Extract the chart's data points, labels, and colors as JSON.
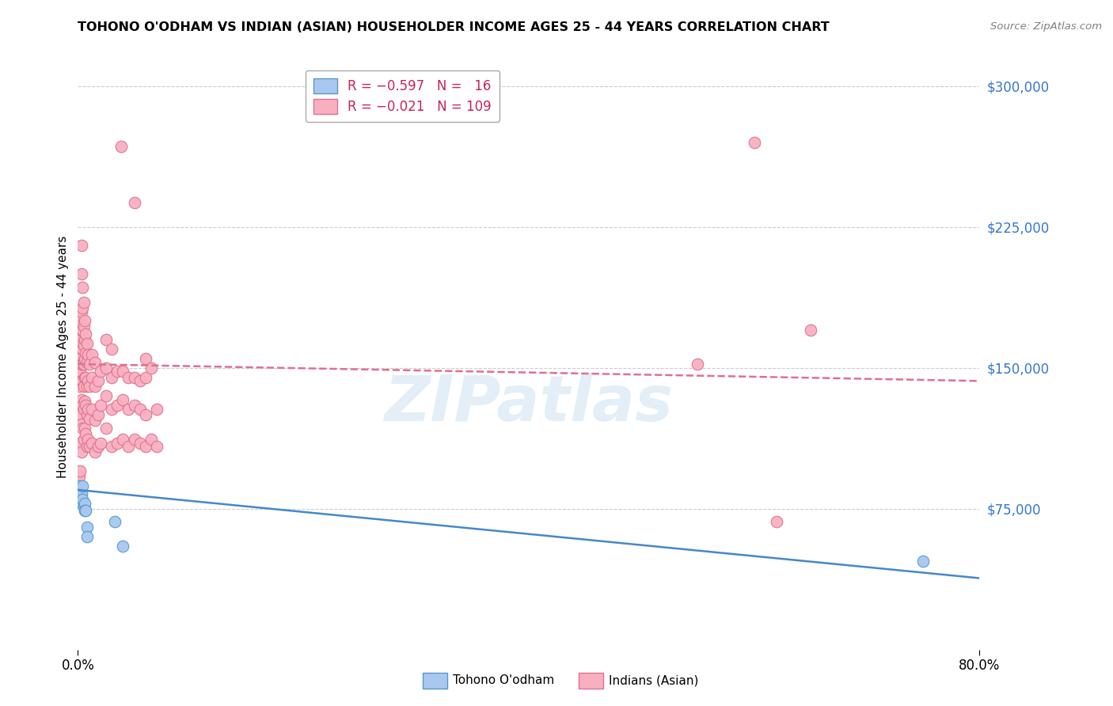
{
  "title": "TOHONO O'ODHAM VS INDIAN (ASIAN) HOUSEHOLDER INCOME AGES 25 - 44 YEARS CORRELATION CHART",
  "source_text": "Source: ZipAtlas.com",
  "ylabel": "Householder Income Ages 25 - 44 years",
  "xlim": [
    0.0,
    0.8
  ],
  "ylim": [
    0,
    312000
  ],
  "ytick_vals": [
    75000,
    150000,
    225000,
    300000
  ],
  "ytick_labels": [
    "$75,000",
    "$150,000",
    "$225,000",
    "$300,000"
  ],
  "grid_color": "#cccccc",
  "background_color": "#ffffff",
  "tohono_color": "#a8c8f0",
  "tohono_edge_color": "#5599cc",
  "indian_color": "#f8b0c0",
  "indian_edge_color": "#e07090",
  "tohono_line_color": "#4488cc",
  "indian_line_color": "#e07090",
  "watermark": "ZIPatlas",
  "tohono_points": [
    [
      0.001,
      87000
    ],
    [
      0.002,
      85000
    ],
    [
      0.002,
      80000
    ],
    [
      0.003,
      83000
    ],
    [
      0.003,
      78000
    ],
    [
      0.004,
      87000
    ],
    [
      0.004,
      80000
    ],
    [
      0.005,
      76000
    ],
    [
      0.006,
      78000
    ],
    [
      0.006,
      74000
    ],
    [
      0.007,
      74000
    ],
    [
      0.008,
      65000
    ],
    [
      0.008,
      60000
    ],
    [
      0.033,
      68000
    ],
    [
      0.04,
      55000
    ],
    [
      0.75,
      47000
    ]
  ],
  "indian_points": [
    [
      0.001,
      85000
    ],
    [
      0.001,
      92000
    ],
    [
      0.001,
      110000
    ],
    [
      0.001,
      125000
    ],
    [
      0.001,
      145000
    ],
    [
      0.001,
      155000
    ],
    [
      0.001,
      165000
    ],
    [
      0.001,
      175000
    ],
    [
      0.002,
      95000
    ],
    [
      0.002,
      110000
    ],
    [
      0.002,
      130000
    ],
    [
      0.002,
      140000
    ],
    [
      0.002,
      148000
    ],
    [
      0.002,
      155000
    ],
    [
      0.002,
      165000
    ],
    [
      0.002,
      172000
    ],
    [
      0.003,
      105000
    ],
    [
      0.003,
      120000
    ],
    [
      0.003,
      133000
    ],
    [
      0.003,
      143000
    ],
    [
      0.003,
      152000
    ],
    [
      0.003,
      162000
    ],
    [
      0.003,
      170000
    ],
    [
      0.003,
      180000
    ],
    [
      0.003,
      200000
    ],
    [
      0.003,
      215000
    ],
    [
      0.004,
      118000
    ],
    [
      0.004,
      130000
    ],
    [
      0.004,
      143000
    ],
    [
      0.004,
      152000
    ],
    [
      0.004,
      160000
    ],
    [
      0.004,
      170000
    ],
    [
      0.004,
      182000
    ],
    [
      0.004,
      193000
    ],
    [
      0.005,
      112000
    ],
    [
      0.005,
      128000
    ],
    [
      0.005,
      140000
    ],
    [
      0.005,
      152000
    ],
    [
      0.005,
      162000
    ],
    [
      0.005,
      172000
    ],
    [
      0.005,
      185000
    ],
    [
      0.006,
      118000
    ],
    [
      0.006,
      132000
    ],
    [
      0.006,
      145000
    ],
    [
      0.006,
      155000
    ],
    [
      0.006,
      165000
    ],
    [
      0.006,
      175000
    ],
    [
      0.007,
      115000
    ],
    [
      0.007,
      130000
    ],
    [
      0.007,
      145000
    ],
    [
      0.007,
      158000
    ],
    [
      0.007,
      168000
    ],
    [
      0.008,
      108000
    ],
    [
      0.008,
      125000
    ],
    [
      0.008,
      140000
    ],
    [
      0.008,
      153000
    ],
    [
      0.008,
      163000
    ],
    [
      0.009,
      112000
    ],
    [
      0.009,
      128000
    ],
    [
      0.009,
      143000
    ],
    [
      0.009,
      157000
    ],
    [
      0.01,
      108000
    ],
    [
      0.01,
      123000
    ],
    [
      0.01,
      140000
    ],
    [
      0.01,
      152000
    ],
    [
      0.012,
      110000
    ],
    [
      0.012,
      128000
    ],
    [
      0.012,
      145000
    ],
    [
      0.012,
      157000
    ],
    [
      0.015,
      105000
    ],
    [
      0.015,
      122000
    ],
    [
      0.015,
      140000
    ],
    [
      0.015,
      153000
    ],
    [
      0.018,
      108000
    ],
    [
      0.018,
      125000
    ],
    [
      0.018,
      143000
    ],
    [
      0.02,
      110000
    ],
    [
      0.02,
      130000
    ],
    [
      0.02,
      148000
    ],
    [
      0.025,
      118000
    ],
    [
      0.025,
      135000
    ],
    [
      0.025,
      150000
    ],
    [
      0.025,
      165000
    ],
    [
      0.03,
      108000
    ],
    [
      0.03,
      128000
    ],
    [
      0.03,
      145000
    ],
    [
      0.03,
      160000
    ],
    [
      0.035,
      110000
    ],
    [
      0.035,
      130000
    ],
    [
      0.035,
      148000
    ],
    [
      0.038,
      268000
    ],
    [
      0.04,
      112000
    ],
    [
      0.04,
      133000
    ],
    [
      0.04,
      148000
    ],
    [
      0.045,
      108000
    ],
    [
      0.045,
      128000
    ],
    [
      0.045,
      145000
    ],
    [
      0.05,
      238000
    ],
    [
      0.05,
      112000
    ],
    [
      0.05,
      130000
    ],
    [
      0.05,
      145000
    ],
    [
      0.055,
      110000
    ],
    [
      0.055,
      128000
    ],
    [
      0.055,
      143000
    ],
    [
      0.06,
      108000
    ],
    [
      0.06,
      125000
    ],
    [
      0.06,
      145000
    ],
    [
      0.06,
      155000
    ],
    [
      0.065,
      112000
    ],
    [
      0.065,
      150000
    ],
    [
      0.07,
      108000
    ],
    [
      0.07,
      128000
    ],
    [
      0.55,
      152000
    ],
    [
      0.6,
      270000
    ],
    [
      0.62,
      68000
    ],
    [
      0.65,
      170000
    ]
  ]
}
